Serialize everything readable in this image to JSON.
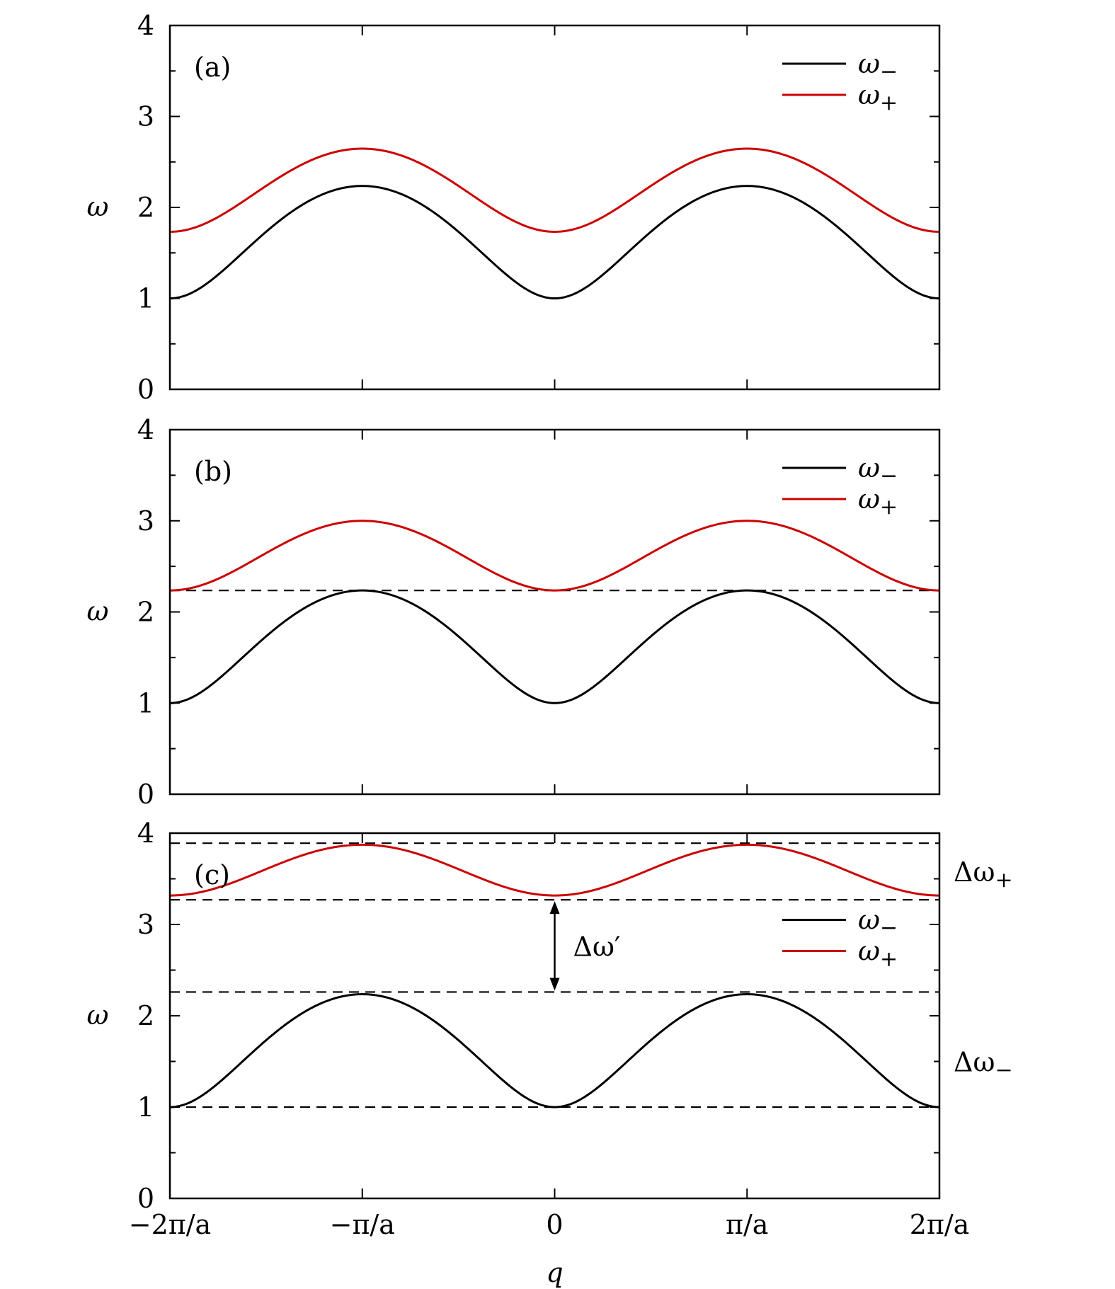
{
  "chart_data": [
    {
      "type": "line",
      "panel_label": "(a)",
      "xlabel": "",
      "ylabel": "ω",
      "xlim": [
        -6.2832,
        6.2832
      ],
      "ylim": [
        0,
        4
      ],
      "yticks": [
        "0",
        "1",
        "2",
        "3",
        "4"
      ],
      "xticks": [
        "−2π/a",
        "−π/a",
        "0",
        "π/a",
        "2π/a"
      ],
      "xtick_labels_visible": false,
      "legend": {
        "position": "top-right",
        "entries": [
          "ω−",
          "ω+"
        ]
      },
      "series": [
        {
          "name": "ω−",
          "color": "#000000",
          "min": 1.0,
          "max": 2.236
        },
        {
          "name": "ω+",
          "color": "#cc0000",
          "min": 1.732,
          "max": 2.646
        }
      ],
      "reference_lines": [],
      "annotations": []
    },
    {
      "type": "line",
      "panel_label": "(b)",
      "xlabel": "",
      "ylabel": "ω",
      "xlim": [
        -6.2832,
        6.2832
      ],
      "ylim": [
        0,
        4
      ],
      "yticks": [
        "0",
        "1",
        "2",
        "3",
        "4"
      ],
      "xticks": [
        "−2π/a",
        "−π/a",
        "0",
        "π/a",
        "2π/a"
      ],
      "xtick_labels_visible": false,
      "legend": {
        "position": "top-right",
        "entries": [
          "ω−",
          "ω+"
        ]
      },
      "series": [
        {
          "name": "ω−",
          "color": "#000000",
          "min": 1.0,
          "max": 2.236
        },
        {
          "name": "ω+",
          "color": "#cc0000",
          "min": 2.236,
          "max": 3.0
        }
      ],
      "reference_lines": [
        2.236
      ],
      "annotations": []
    },
    {
      "type": "line",
      "panel_label": "(c)",
      "xlabel": "q",
      "ylabel": "ω",
      "xlim": [
        -6.2832,
        6.2832
      ],
      "ylim": [
        0,
        4
      ],
      "yticks": [
        "0",
        "1",
        "2",
        "3",
        "4"
      ],
      "xticks": [
        "−2π/a",
        "−π/a",
        "0",
        "π/a",
        "2π/a"
      ],
      "xtick_labels_visible": true,
      "legend": {
        "position": "center-right",
        "entries": [
          "ω−",
          "ω+"
        ]
      },
      "series": [
        {
          "name": "ω−",
          "color": "#000000",
          "min": 1.0,
          "max": 2.236
        },
        {
          "name": "ω+",
          "color": "#cc0000",
          "min": 3.317,
          "max": 3.873
        }
      ],
      "reference_lines": [
        3.89,
        3.27,
        2.26,
        1.0
      ],
      "annotations": [
        {
          "text": "Δω+",
          "y": 3.58,
          "placement": "right-outside"
        },
        {
          "text": "Δω−",
          "y": 1.5,
          "placement": "right-outside"
        },
        {
          "text": "Δω′",
          "arrow_from": 3.27,
          "arrow_to": 2.26,
          "x": 0
        }
      ]
    }
  ]
}
